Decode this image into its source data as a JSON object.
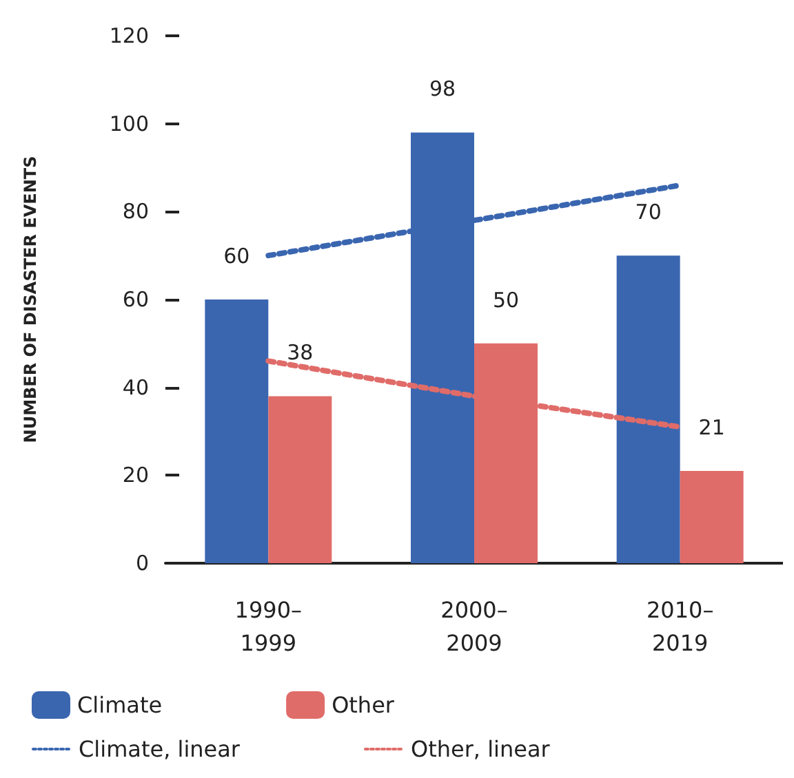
{
  "chart_data": {
    "type": "bar",
    "ylabel": "NUMBER OF DISASTER EVENTS",
    "categories": [
      "1990–1999",
      "2000–2009",
      "2010–2019"
    ],
    "series": [
      {
        "name": "Climate",
        "color": "#3a66b0",
        "values": [
          60,
          98,
          70
        ],
        "value_labels": [
          "60",
          "98",
          "70"
        ]
      },
      {
        "name": "Other",
        "color": "#e06c69",
        "values": [
          38,
          50,
          21
        ],
        "value_labels": [
          "38",
          "50",
          "21"
        ]
      },
      {
        "name": "Climate, linear",
        "type": "line",
        "line_style": "dotted",
        "color": "#3a66b0",
        "values": [
          70,
          78,
          86
        ]
      },
      {
        "name": "Other, linear",
        "type": "line",
        "line_style": "dotted",
        "color": "#e06c69",
        "values": [
          46,
          38,
          31
        ]
      }
    ],
    "ylim": [
      0,
      120
    ],
    "yticks": [
      0,
      20,
      40,
      60,
      80,
      100,
      120
    ],
    "grid": false,
    "legend": "bottom",
    "marker": "none"
  }
}
